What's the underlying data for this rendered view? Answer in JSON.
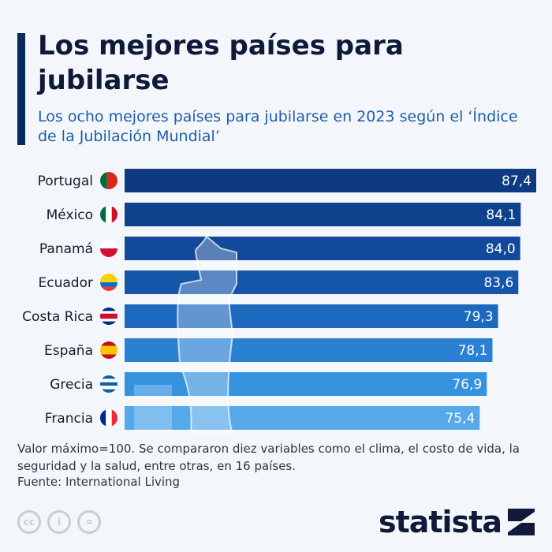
{
  "header": {
    "title": "Los mejores países para jubilarse",
    "subtitle": "Los ocho mejores países para jubilarse en 2023 según el ‘Índice de la Jubilación Mundial’"
  },
  "chart_data": {
    "type": "bar",
    "orientation": "horizontal",
    "categories": [
      "Portugal",
      "México",
      "Panamá",
      "Ecuador",
      "Costa Rica",
      "España",
      "Grecia",
      "Francia"
    ],
    "values": [
      87.4,
      84.1,
      84.0,
      83.6,
      79.3,
      78.1,
      76.9,
      75.4
    ],
    "labels": [
      "87,4",
      "84,1",
      "84,0",
      "83,6",
      "79,3",
      "78,1",
      "76,9",
      "75,4"
    ],
    "xlim": [
      0,
      87.4
    ],
    "grid": false,
    "colors": [
      "#0d3a80",
      "#0f428d",
      "#12499a",
      "#1656a9",
      "#1d69bd",
      "#2a80d3",
      "#3592df",
      "#55a8ea"
    ],
    "flags": [
      "portugal-flag",
      "mexico-flag",
      "panama-flag",
      "ecuador-flag",
      "costa-rica-flag",
      "spain-flag",
      "greece-flag",
      "france-flag"
    ]
  },
  "footer": {
    "note": "Valor máximo=100. Se compararon diez variables como el clima, el costo de vida, la seguridad y la salud, entre otras, en 16 países.",
    "source": "Fuente: International Living",
    "brand": "statista",
    "cc": [
      "cc",
      "i",
      "="
    ]
  }
}
